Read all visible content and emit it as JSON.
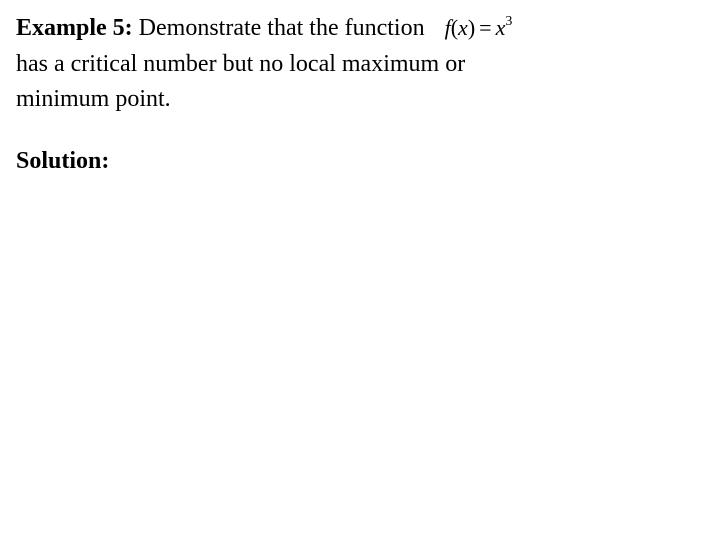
{
  "example": {
    "label": "Example 5:",
    "line1_text": " Demonstrate that the function",
    "line2_text": "has a critical number but no local maximum or",
    "line3_text": "minimum point.",
    "formula": {
      "lhs_func": "f",
      "lhs_paren_open": "(",
      "lhs_var": "x",
      "lhs_paren_close": ")",
      "equals": "=",
      "rhs_var": "x",
      "rhs_exp": "3"
    }
  },
  "solution": {
    "label": "Solution:"
  },
  "style": {
    "font_family": "Times New Roman",
    "font_size_pt": 24,
    "formula_font_size_pt": 22,
    "exp_font_size_pt": 14,
    "background_color": "#ffffff",
    "text_color": "#000000"
  }
}
